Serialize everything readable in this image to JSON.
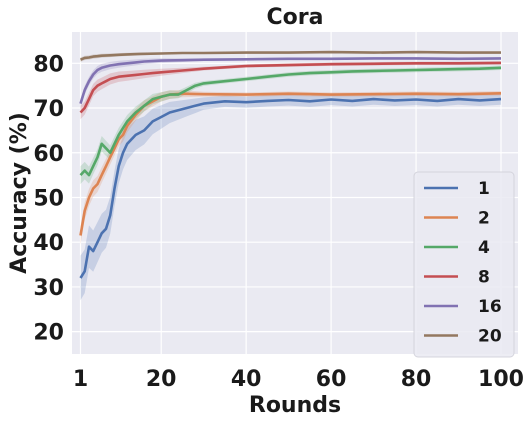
{
  "chart_data": {
    "type": "line",
    "title": "Cora",
    "xlabel": "Rounds",
    "ylabel": "Accuracy (%)",
    "xlim": [
      -1,
      104
    ],
    "ylim": [
      15,
      87
    ],
    "xticks": [
      1,
      20,
      40,
      60,
      80,
      100
    ],
    "yticks": [
      20,
      30,
      40,
      50,
      60,
      70,
      80
    ],
    "grid": true,
    "legend_position": "lower-right",
    "background": "#eaeaf2",
    "series": [
      {
        "name": "1",
        "color": "#4c72b0",
        "x": [
          1,
          2,
          3,
          4,
          5,
          6,
          7,
          8,
          9,
          10,
          11,
          12,
          14,
          16,
          18,
          20,
          22,
          24,
          26,
          28,
          30,
          35,
          40,
          45,
          50,
          55,
          60,
          65,
          70,
          75,
          80,
          85,
          90,
          95,
          100
        ],
        "y": [
          32,
          33.5,
          39,
          38,
          40,
          42,
          43,
          46,
          52,
          57,
          60,
          62,
          64,
          65,
          67,
          68,
          69,
          69.5,
          70,
          70.5,
          71,
          71.5,
          71.3,
          71.6,
          71.8,
          71.5,
          71.9,
          71.6,
          72,
          71.7,
          71.9,
          71.6,
          72,
          71.7,
          72
        ],
        "band": 5
      },
      {
        "name": "2",
        "color": "#dd8452",
        "x": [
          1,
          2,
          3,
          4,
          5,
          6,
          7,
          8,
          9,
          10,
          11,
          12,
          14,
          16,
          18,
          20,
          22,
          25,
          30,
          40,
          50,
          60,
          70,
          80,
          90,
          100
        ],
        "y": [
          41.5,
          47,
          50,
          52,
          53,
          55,
          57,
          59,
          61,
          63,
          64,
          66,
          68.5,
          70.5,
          71.5,
          72.5,
          73,
          73.2,
          73.1,
          73,
          73.2,
          73,
          73.1,
          73.2,
          73.1,
          73.3
        ],
        "band": 2
      },
      {
        "name": "4",
        "color": "#55a868",
        "x": [
          1,
          2,
          3,
          4,
          5,
          6,
          7,
          8,
          10,
          12,
          14,
          16,
          18,
          20,
          22,
          24,
          26,
          28,
          30,
          35,
          40,
          45,
          50,
          55,
          60,
          65,
          70,
          75,
          80,
          85,
          90,
          95,
          100
        ],
        "y": [
          55,
          56,
          55,
          57,
          59,
          62,
          61,
          60,
          64,
          67,
          69,
          70.5,
          72,
          72.5,
          73,
          73,
          74,
          75,
          75.5,
          76,
          76.5,
          77,
          77.5,
          77.8,
          78,
          78.2,
          78.3,
          78.4,
          78.5,
          78.6,
          78.7,
          78.8,
          79
        ],
        "band": 2
      },
      {
        "name": "8",
        "color": "#c44e52",
        "x": [
          1,
          2,
          3,
          4,
          5,
          6,
          7,
          8,
          10,
          12,
          14,
          16,
          18,
          20,
          25,
          30,
          35,
          40,
          50,
          60,
          70,
          80,
          90,
          100
        ],
        "y": [
          69,
          70,
          72,
          74,
          75,
          75.5,
          76,
          76.5,
          77,
          77.2,
          77.4,
          77.6,
          77.8,
          78,
          78.4,
          78.8,
          79.1,
          79.4,
          79.6,
          79.8,
          79.9,
          80,
          80,
          80.1
        ],
        "band": 1.5
      },
      {
        "name": "16",
        "color": "#8172b2",
        "x": [
          1,
          2,
          3,
          4,
          5,
          6,
          8,
          10,
          12,
          14,
          16,
          18,
          20,
          25,
          30,
          40,
          50,
          60,
          70,
          80,
          90,
          100
        ],
        "y": [
          71,
          74,
          76,
          77.5,
          78.5,
          79,
          79.5,
          79.8,
          80,
          80.2,
          80.4,
          80.5,
          80.6,
          80.7,
          80.8,
          80.9,
          81,
          81,
          81.1,
          81.1,
          81,
          81.1
        ],
        "band": 1
      },
      {
        "name": "20",
        "color": "#937860",
        "x": [
          1,
          2,
          3,
          4,
          5,
          6,
          8,
          10,
          12,
          15,
          20,
          25,
          30,
          40,
          50,
          60,
          70,
          80,
          90,
          100
        ],
        "y": [
          80.8,
          81.2,
          81.3,
          81.5,
          81.6,
          81.7,
          81.8,
          81.9,
          82,
          82.1,
          82.2,
          82.3,
          82.3,
          82.4,
          82.4,
          82.5,
          82.4,
          82.5,
          82.4,
          82.4
        ],
        "band": 0.5
      }
    ]
  }
}
